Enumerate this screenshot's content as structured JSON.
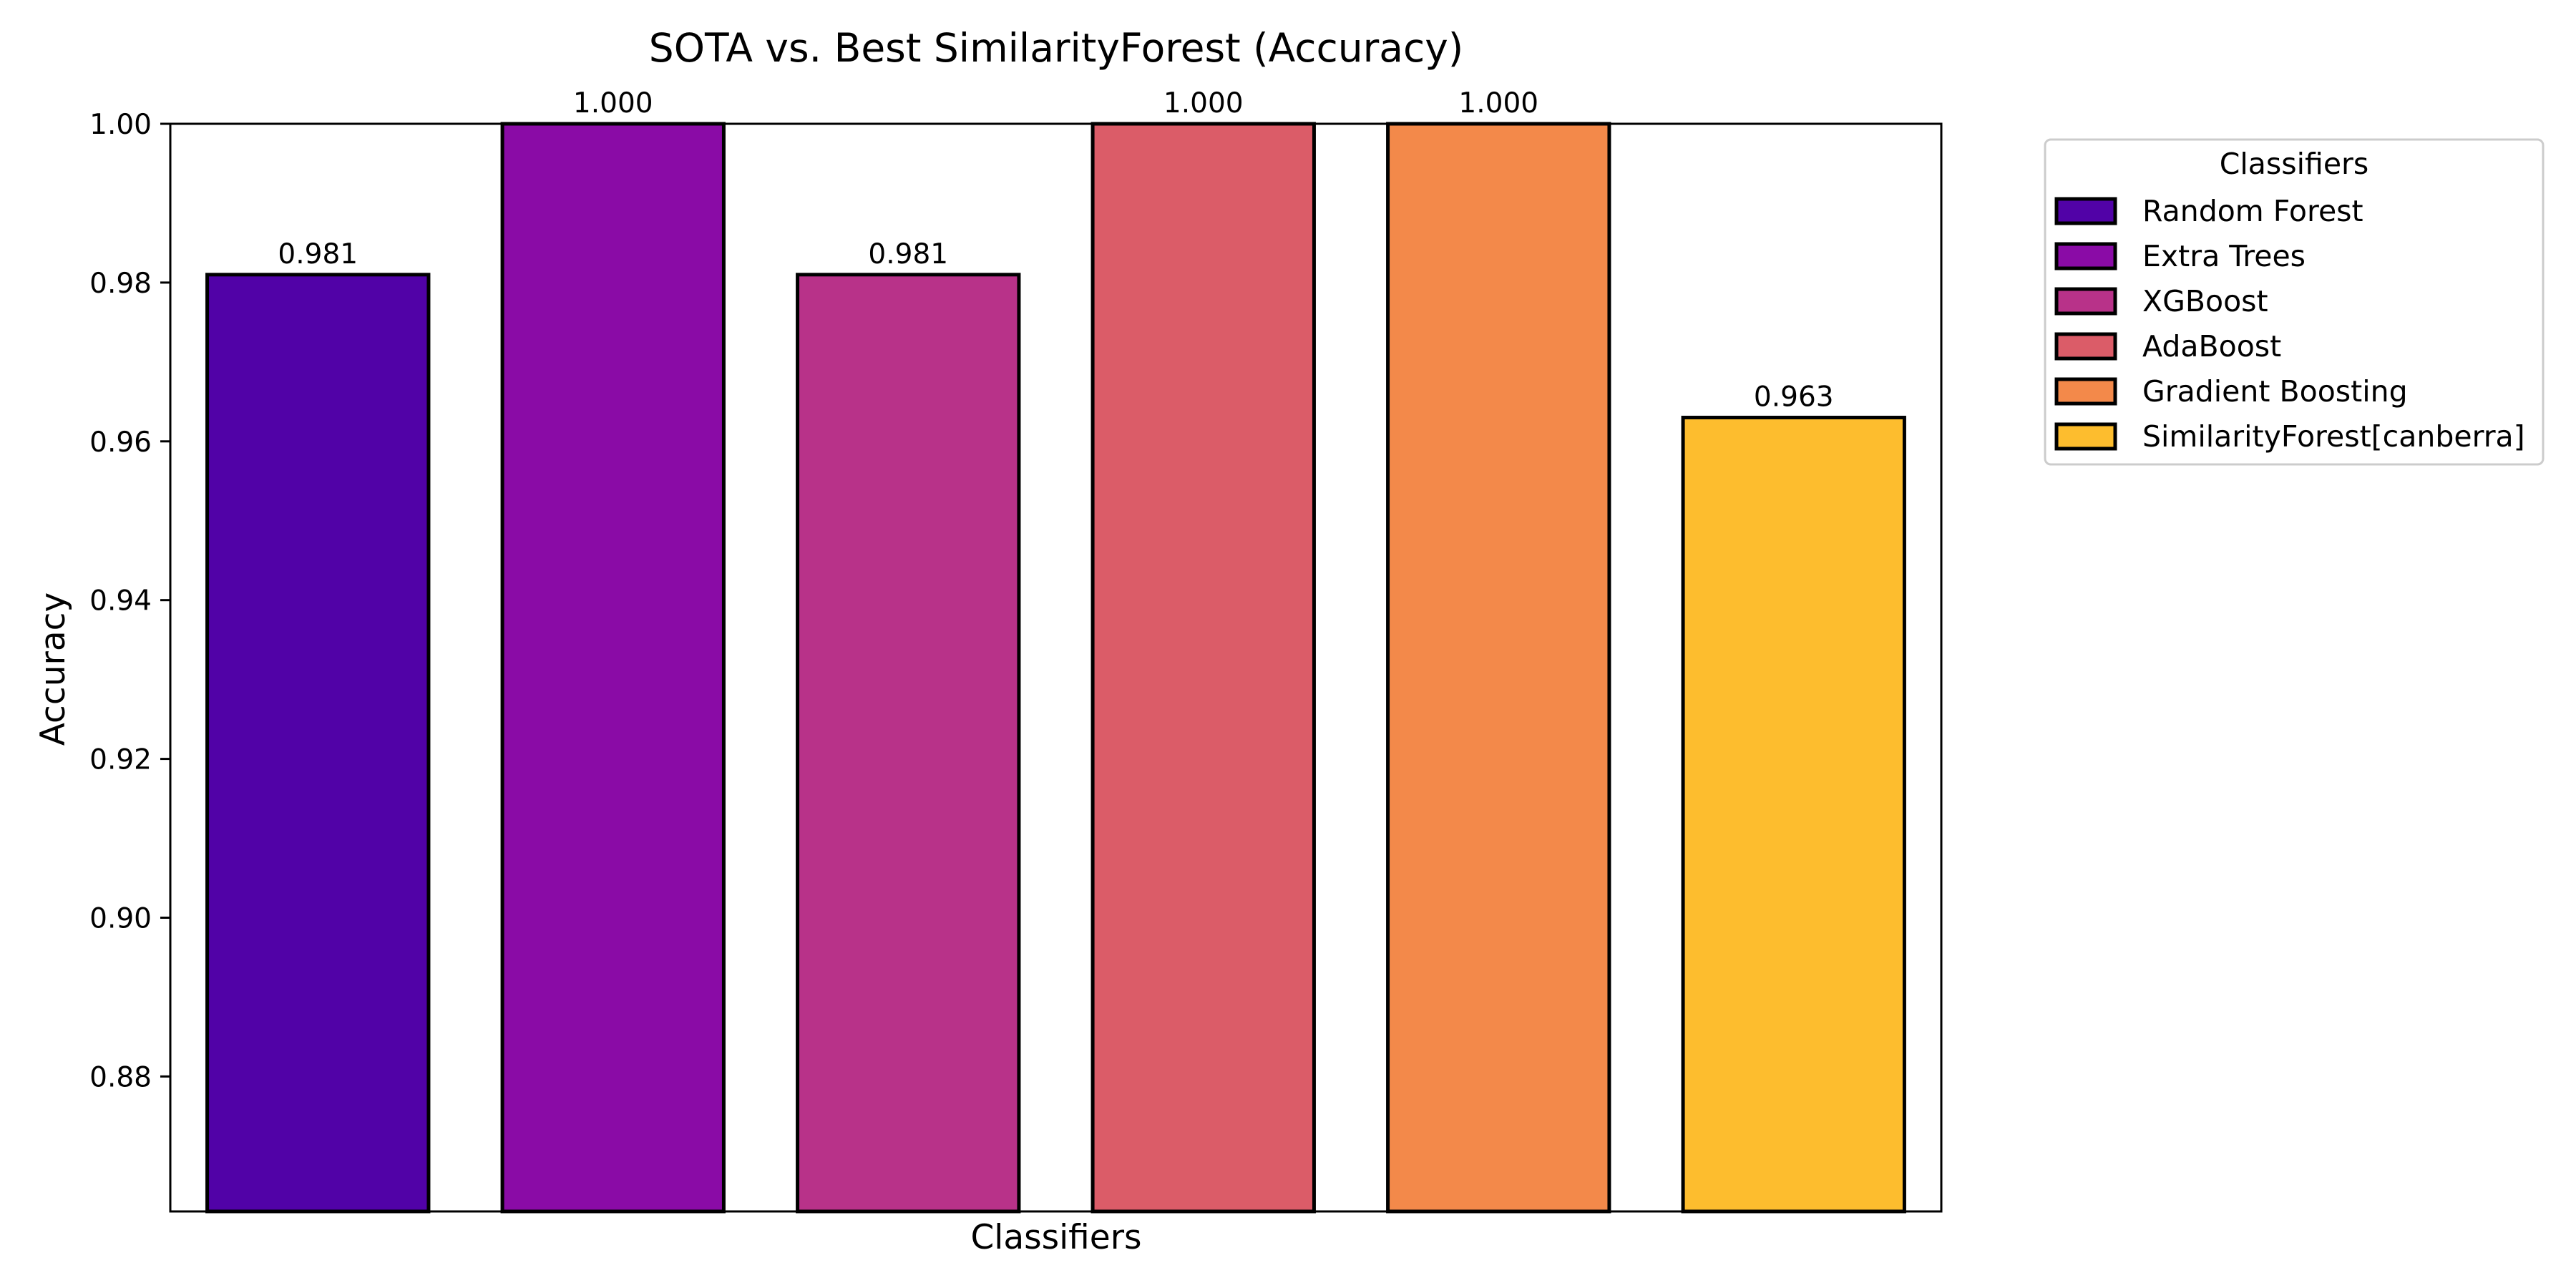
{
  "chart_data": {
    "type": "bar",
    "title": "SOTA vs. Best SimilarityForest (Accuracy)",
    "xlabel": "Classifiers",
    "ylabel": "Accuracy",
    "ylim": [
      0.863,
      1.0
    ],
    "yticks": [
      "0.88",
      "0.90",
      "0.92",
      "0.94",
      "0.96",
      "0.98",
      "1.00"
    ],
    "ytick_values": [
      0.88,
      0.9,
      0.92,
      0.94,
      0.96,
      0.98,
      1.0
    ],
    "categories": [
      "Random Forest",
      "Extra Trees",
      "XGBoost",
      "AdaBoost",
      "Gradient Boosting",
      "SimilarityForest[canberra]"
    ],
    "values": [
      0.981,
      1.0,
      0.981,
      1.0,
      1.0,
      0.963
    ],
    "value_labels": [
      "0.981",
      "1.000",
      "0.981",
      "1.000",
      "1.000",
      "0.963"
    ],
    "colors": [
      "#5102a7",
      "#8a0ba6",
      "#b83289",
      "#db5c68",
      "#f3894a",
      "#fdbd2e"
    ],
    "grid": false,
    "legend": {
      "title": "Classifiers",
      "placement": "outside-top-right",
      "entries": [
        "Random Forest",
        "Extra Trees",
        "XGBoost",
        "AdaBoost",
        "Gradient Boosting",
        "SimilarityForest[canberra]"
      ]
    }
  }
}
